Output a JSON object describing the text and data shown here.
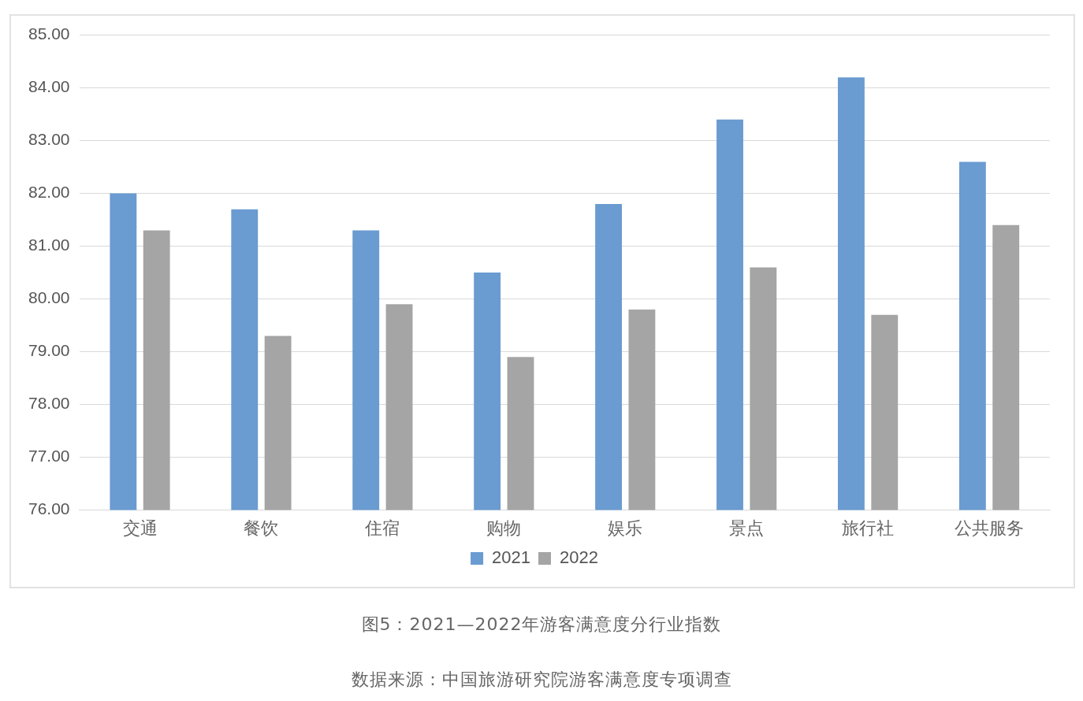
{
  "chart_data": {
    "type": "bar",
    "categories": [
      "交通",
      "餐饮",
      "住宿",
      "购物",
      "娱乐",
      "景点",
      "旅行社",
      "公共服务"
    ],
    "series": [
      {
        "name": "2021",
        "color": "#6a9bd1",
        "values": [
          82.0,
          81.7,
          81.3,
          80.5,
          81.8,
          83.4,
          84.2,
          82.6
        ]
      },
      {
        "name": "2022",
        "color": "#a5a5a5",
        "values": [
          81.3,
          79.3,
          79.9,
          78.9,
          79.8,
          80.6,
          79.7,
          81.4
        ]
      }
    ],
    "ylim": [
      76,
      85
    ],
    "yticks": [
      {
        "value": 76,
        "label": "76.00"
      },
      {
        "value": 77,
        "label": "77.00"
      },
      {
        "value": 78,
        "label": "78.00"
      },
      {
        "value": 79,
        "label": "79.00"
      },
      {
        "value": 80,
        "label": "80.00"
      },
      {
        "value": 81,
        "label": "81.00"
      },
      {
        "value": 82,
        "label": "82.00"
      },
      {
        "value": 83,
        "label": "83.00"
      },
      {
        "value": 84,
        "label": "84.00"
      },
      {
        "value": 85,
        "label": "85.00"
      }
    ],
    "grid": "y",
    "legend": "bottom",
    "annotations": [
      "图5：2021—2022年游客满意度分行业指数",
      "数据来源：中国旅游研究院游客满意度专项调查"
    ]
  }
}
